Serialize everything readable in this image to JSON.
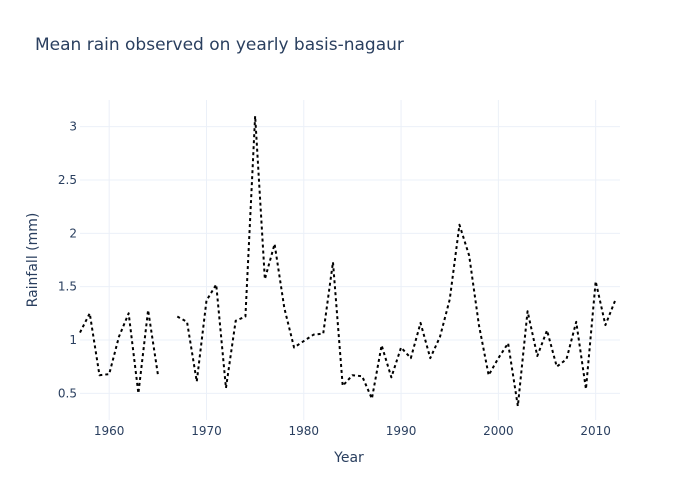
{
  "chart_data": {
    "type": "line",
    "title": "Mean rain observed on yearly basis-nagaur",
    "xlabel": "Year",
    "ylabel": "Rainfall (mm)",
    "xlim": [
      1957,
      2012.5
    ],
    "ylim": [
      0.25,
      3.25
    ],
    "x_ticks": [
      1960,
      1970,
      1980,
      1990,
      2000,
      2010
    ],
    "x_tick_labels": [
      "1960",
      "1970",
      "1980",
      "1990",
      "2000",
      "2010"
    ],
    "y_ticks": [
      0.5,
      1,
      1.5,
      2,
      2.5,
      3
    ],
    "y_tick_labels": [
      "0.5",
      "1",
      "1.5",
      "2",
      "2.5",
      "3"
    ],
    "grid": true,
    "legend": false,
    "line_color": "#000000",
    "line_style": "dotted",
    "series": [
      {
        "x": [
          1957,
          1958,
          1959,
          1960,
          1961,
          1962,
          1963,
          1964,
          1965,
          1966,
          1967,
          1968,
          1969,
          1970,
          1971,
          1972,
          1973,
          1974,
          1975,
          1976,
          1977,
          1978,
          1979,
          1980,
          1981,
          1982,
          1983,
          1984,
          1985,
          1986,
          1987,
          1988,
          1989,
          1990,
          1991,
          1992,
          1993,
          1994,
          1995,
          1996,
          1997,
          1998,
          1999,
          2000,
          2001,
          2002,
          2003,
          2004,
          2005,
          2006,
          2007,
          2008,
          2009,
          2010,
          2011,
          2012
        ],
        "y": [
          1.07,
          1.25,
          0.67,
          0.68,
          1.03,
          1.25,
          0.5,
          1.28,
          0.68,
          null,
          1.22,
          1.17,
          0.61,
          1.37,
          1.52,
          0.55,
          1.18,
          1.22,
          3.1,
          1.57,
          1.9,
          1.3,
          0.93,
          0.99,
          1.05,
          1.06,
          1.73,
          0.57,
          0.67,
          0.66,
          0.45,
          0.95,
          0.65,
          0.93,
          0.83,
          1.16,
          0.83,
          1.03,
          1.38,
          2.08,
          1.79,
          1.14,
          0.67,
          0.83,
          0.97,
          0.38,
          1.27,
          0.85,
          1.09,
          0.75,
          0.82,
          1.17,
          0.54,
          1.55,
          1.14,
          1.37
        ]
      }
    ]
  }
}
